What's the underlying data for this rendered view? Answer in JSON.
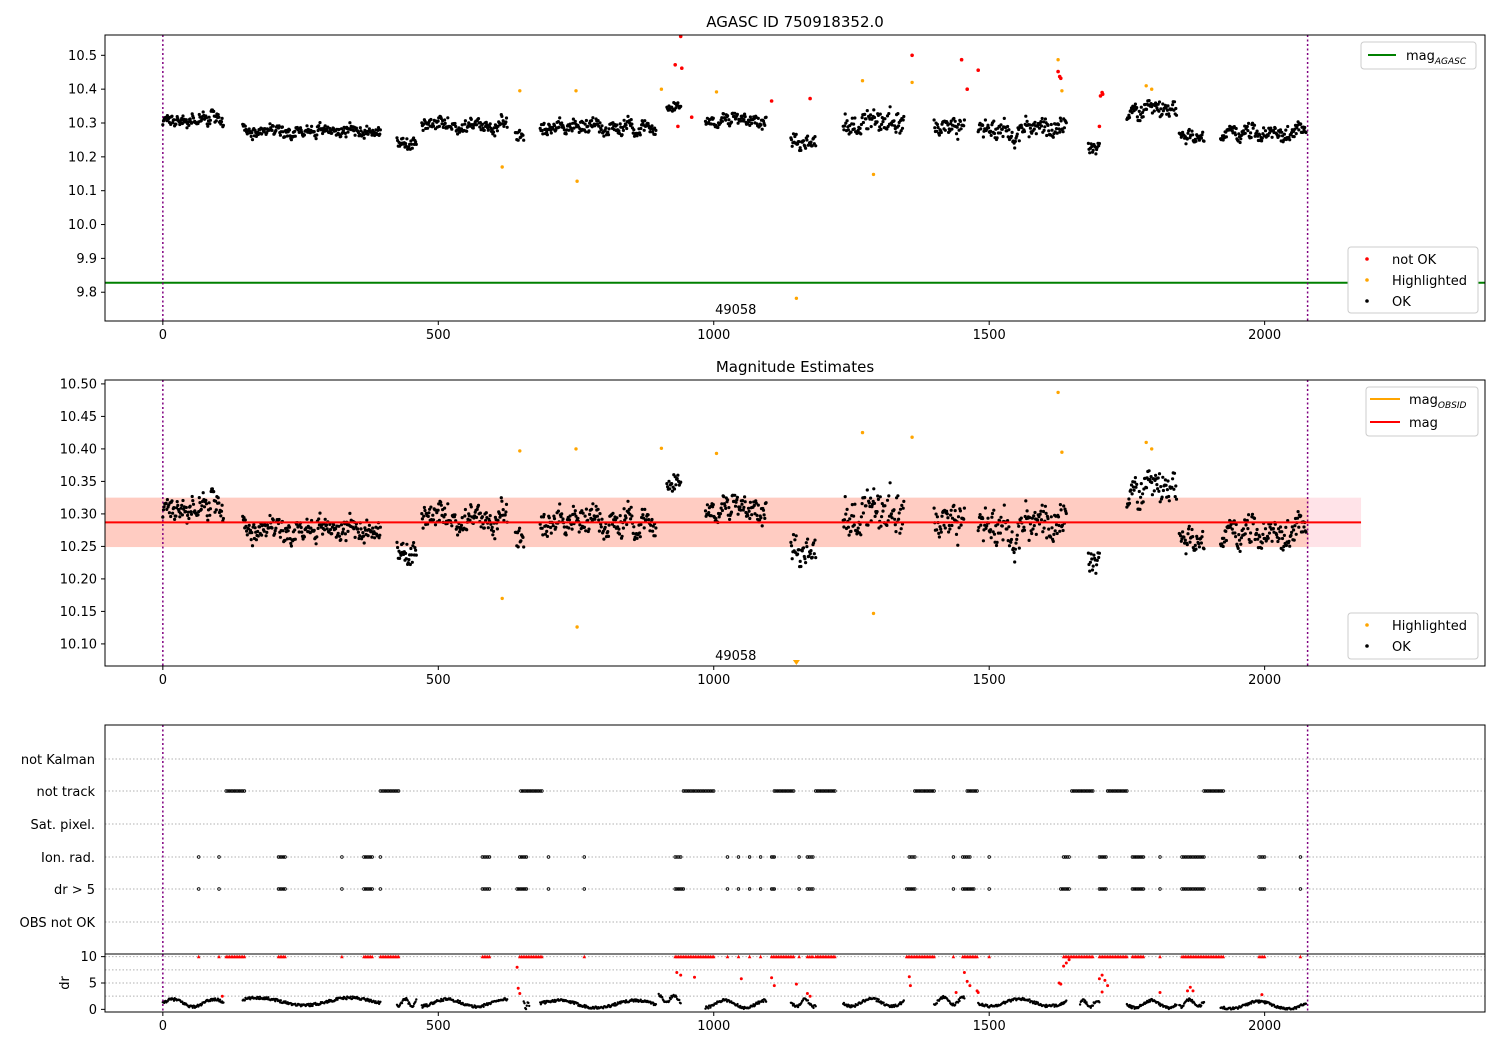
{
  "figure": {
    "colors": {
      "ok": "#000000",
      "not_ok": "#ff0000",
      "highlighted": "#ffa500",
      "agasc_line": "#008000",
      "obsid_line": "#ffa500",
      "mag_line": "#ff0000",
      "band_pink": "#ffc0cb",
      "band_orange": "#ffa07a",
      "vline": "#800080"
    }
  },
  "chart_data": [
    {
      "type": "scatter",
      "title": "AGASC ID 750918352.0",
      "xticks": [
        "0",
        "500",
        "1000",
        "1500",
        "2000"
      ],
      "yticks": [
        "9.8",
        "9.9",
        "10.0",
        "10.1",
        "10.2",
        "10.3",
        "10.4",
        "10.5"
      ],
      "xlim": [
        -105,
        2400
      ],
      "ylim": [
        9.715,
        10.56
      ],
      "annotation": {
        "text": "49058",
        "x": 1040,
        "y": 9.745
      },
      "reference_line": {
        "name": "mag_AGASC",
        "y": 9.828
      },
      "vlines": [
        0,
        2078
      ],
      "legends": {
        "top_right": {
          "label": "mag",
          "sub": "AGASC"
        },
        "bottom_right": [
          "not OK",
          "Highlighted",
          "OK"
        ]
      },
      "series": [
        {
          "name": "OK",
          "segments": [
            [
              0,
              110,
              10.31,
              0.035
            ],
            [
              145,
              395,
              10.28,
              0.028
            ],
            [
              425,
              460,
              10.24,
              0.035
            ],
            [
              470,
              625,
              10.29,
              0.03
            ],
            [
              640,
              655,
              10.26,
              0.03
            ],
            [
              685,
              895,
              10.29,
              0.035
            ],
            [
              915,
              940,
              10.35,
              0.03
            ],
            [
              985,
              1095,
              10.31,
              0.03
            ],
            [
              1140,
              1185,
              10.25,
              0.04
            ],
            [
              1235,
              1345,
              10.3,
              0.06
            ],
            [
              1400,
              1455,
              10.3,
              0.045
            ],
            [
              1480,
              1640,
              10.28,
              0.05
            ],
            [
              1680,
              1700,
              10.23,
              0.04
            ],
            [
              1750,
              1840,
              10.33,
              0.04
            ],
            [
              1845,
              1890,
              10.26,
              0.03
            ],
            [
              1920,
              2075,
              10.27,
              0.04
            ]
          ]
        },
        {
          "name": "Highlighted",
          "points": [
            [
              616,
              10.17
            ],
            [
              648,
              10.395
            ],
            [
              750,
              10.395
            ],
            [
              752,
              10.128
            ],
            [
              905,
              10.4
            ],
            [
              1005,
              10.392
            ],
            [
              1270,
              10.425
            ],
            [
              1290,
              10.148
            ],
            [
              1360,
              10.42
            ],
            [
              1625,
              10.487
            ],
            [
              1632,
              10.395
            ],
            [
              1785,
              10.41
            ],
            [
              1795,
              10.4
            ],
            [
              1150,
              9.782
            ]
          ]
        },
        {
          "name": "not OK",
          "points": [
            [
              930,
              10.472
            ],
            [
              935,
              10.29
            ],
            [
              940,
              10.556
            ],
            [
              942,
              10.462
            ],
            [
              960,
              10.317
            ],
            [
              1105,
              10.365
            ],
            [
              1175,
              10.372
            ],
            [
              1360,
              10.5
            ],
            [
              1450,
              10.487
            ],
            [
              1460,
              10.4
            ],
            [
              1480,
              10.456
            ],
            [
              1625,
              10.452
            ],
            [
              1628,
              10.437
            ],
            [
              1630,
              10.432
            ],
            [
              1700,
              10.29
            ],
            [
              1702,
              10.38
            ],
            [
              1705,
              10.39
            ],
            [
              1706,
              10.385
            ]
          ]
        }
      ]
    },
    {
      "type": "scatter",
      "title": "Magnitude Estimates",
      "xticks": [
        "0",
        "500",
        "1000",
        "1500",
        "2000"
      ],
      "yticks": [
        "10.10",
        "10.15",
        "10.20",
        "10.25",
        "10.30",
        "10.35",
        "10.40",
        "10.45",
        "10.50"
      ],
      "xlim": [
        -105,
        2400
      ],
      "ylim": [
        10.066,
        10.506
      ],
      "annotation": {
        "text": "49058",
        "x": 1040,
        "y": 10.08
      },
      "mag_line": {
        "name": "mag",
        "y": 10.287,
        "x_range": [
          -105,
          2175
        ]
      },
      "bands": [
        {
          "color": "pink",
          "y": [
            10.249,
            10.325
          ],
          "x_range": [
            -105,
            2175
          ]
        },
        {
          "color": "orange",
          "y": [
            10.249,
            10.325
          ],
          "x_range": [
            -105,
            2080
          ]
        }
      ],
      "vlines": [
        0,
        2078
      ],
      "legends": {
        "top_right": [
          {
            "label": "mag",
            "sub": "OBSID"
          },
          {
            "label": "mag"
          }
        ],
        "bottom_right": [
          "Highlighted",
          "OK"
        ]
      },
      "series": [
        {
          "name": "OK",
          "segments": [
            [
              0,
              110,
              10.31,
              0.035
            ],
            [
              145,
              395,
              10.28,
              0.028
            ],
            [
              425,
              460,
              10.24,
              0.035
            ],
            [
              470,
              625,
              10.29,
              0.03
            ],
            [
              640,
              655,
              10.26,
              0.03
            ],
            [
              685,
              895,
              10.29,
              0.035
            ],
            [
              915,
              940,
              10.35,
              0.03
            ],
            [
              985,
              1095,
              10.31,
              0.03
            ],
            [
              1140,
              1185,
              10.25,
              0.04
            ],
            [
              1235,
              1345,
              10.3,
              0.06
            ],
            [
              1400,
              1455,
              10.3,
              0.045
            ],
            [
              1480,
              1640,
              10.28,
              0.05
            ],
            [
              1680,
              1700,
              10.23,
              0.04
            ],
            [
              1750,
              1840,
              10.33,
              0.04
            ],
            [
              1845,
              1890,
              10.26,
              0.03
            ],
            [
              1920,
              2075,
              10.27,
              0.04
            ]
          ]
        },
        {
          "name": "Highlighted",
          "points": [
            [
              616,
              10.17
            ],
            [
              648,
              10.397
            ],
            [
              750,
              10.4
            ],
            [
              752,
              10.126
            ],
            [
              905,
              10.401
            ],
            [
              1005,
              10.393
            ],
            [
              1270,
              10.425
            ],
            [
              1290,
              10.147
            ],
            [
              1360,
              10.418
            ],
            [
              1625,
              10.487
            ],
            [
              1632,
              10.395
            ],
            [
              1785,
              10.41
            ],
            [
              1795,
              10.4
            ]
          ],
          "below_range_marker_x": 1150
        }
      ]
    },
    {
      "type": "scatter",
      "title": "",
      "xticks": [
        "0",
        "500",
        "1000",
        "1500",
        "2000"
      ],
      "xlim": [
        -105,
        2400
      ],
      "vlines": [
        0,
        2078
      ],
      "flag_rows": [
        "not Kalman",
        "not track",
        "Sat. pixel.",
        "Ion. rad.",
        "dr > 5",
        "OBS not OK"
      ],
      "flags": {
        "not track": [
          [
            115,
            148
          ],
          [
            395,
            428
          ],
          [
            650,
            688
          ],
          [
            945,
            1000
          ],
          [
            1110,
            1145
          ],
          [
            1185,
            1220
          ],
          [
            1365,
            1400
          ],
          [
            1460,
            1478
          ],
          [
            1650,
            1688
          ],
          [
            1715,
            1750
          ],
          [
            1890,
            1925
          ]
        ],
        "Ion. rad.": [
          [
            65,
            65
          ],
          [
            102,
            102
          ],
          [
            210,
            222
          ],
          [
            325,
            325
          ],
          [
            365,
            380
          ],
          [
            395,
            395
          ],
          [
            580,
            593
          ],
          [
            648,
            660
          ],
          [
            700,
            700
          ],
          [
            765,
            765
          ],
          [
            930,
            940
          ],
          [
            1025,
            1025
          ],
          [
            1045,
            1045
          ],
          [
            1065,
            1065
          ],
          [
            1085,
            1085
          ],
          [
            1105,
            1110
          ],
          [
            1155,
            1155
          ],
          [
            1170,
            1180
          ],
          [
            1355,
            1365
          ],
          [
            1435,
            1435
          ],
          [
            1452,
            1465
          ],
          [
            1500,
            1500
          ],
          [
            1635,
            1645
          ],
          [
            1700,
            1712
          ],
          [
            1760,
            1780
          ],
          [
            1810,
            1810
          ],
          [
            1850,
            1890
          ],
          [
            1990,
            2000
          ],
          [
            2065,
            2065
          ]
        ],
        "dr > 5": [
          [
            65,
            65
          ],
          [
            102,
            102
          ],
          [
            210,
            222
          ],
          [
            325,
            325
          ],
          [
            365,
            380
          ],
          [
            395,
            395
          ],
          [
            580,
            593
          ],
          [
            643,
            660
          ],
          [
            700,
            700
          ],
          [
            765,
            765
          ],
          [
            930,
            945
          ],
          [
            1025,
            1025
          ],
          [
            1045,
            1045
          ],
          [
            1065,
            1065
          ],
          [
            1085,
            1085
          ],
          [
            1105,
            1110
          ],
          [
            1155,
            1155
          ],
          [
            1170,
            1180
          ],
          [
            1350,
            1365
          ],
          [
            1435,
            1435
          ],
          [
            1452,
            1472
          ],
          [
            1500,
            1500
          ],
          [
            1630,
            1645
          ],
          [
            1700,
            1712
          ],
          [
            1760,
            1780
          ],
          [
            1810,
            1810
          ],
          [
            1850,
            1890
          ],
          [
            1990,
            2000
          ],
          [
            2065,
            2065
          ]
        ]
      },
      "dr": {
        "ylabel": "dr",
        "yticks": [
          "0",
          "5",
          "10"
        ],
        "ylim": [
          -0.5,
          10.5
        ],
        "clip_points_x": [
          [
            65,
            65
          ],
          [
            102,
            102
          ],
          [
            115,
            148
          ],
          [
            210,
            222
          ],
          [
            325,
            325
          ],
          [
            365,
            380
          ],
          [
            395,
            428
          ],
          [
            580,
            593
          ],
          [
            648,
            688
          ],
          [
            765,
            765
          ],
          [
            930,
            1000
          ],
          [
            1025,
            1025
          ],
          [
            1045,
            1045
          ],
          [
            1065,
            1065
          ],
          [
            1085,
            1085
          ],
          [
            1105,
            1145
          ],
          [
            1155,
            1155
          ],
          [
            1170,
            1180
          ],
          [
            1185,
            1220
          ],
          [
            1350,
            1400
          ],
          [
            1435,
            1435
          ],
          [
            1452,
            1478
          ],
          [
            1500,
            1500
          ],
          [
            1635,
            1688
          ],
          [
            1700,
            1750
          ],
          [
            1760,
            1780
          ],
          [
            1810,
            1810
          ],
          [
            1850,
            1925
          ],
          [
            1990,
            2000
          ],
          [
            2065,
            2065
          ]
        ],
        "red_points": [
          [
            108,
            2.5
          ],
          [
            643,
            8
          ],
          [
            645,
            4
          ],
          [
            648,
            3
          ],
          [
            933,
            7
          ],
          [
            940,
            6.5
          ],
          [
            965,
            6.1
          ],
          [
            1050,
            5.8
          ],
          [
            1105,
            6
          ],
          [
            1110,
            4.5
          ],
          [
            1150,
            4.8
          ],
          [
            1170,
            3
          ],
          [
            1175,
            2.5
          ],
          [
            1355,
            6.2
          ],
          [
            1357,
            4.5
          ],
          [
            1440,
            3.2
          ],
          [
            1455,
            7
          ],
          [
            1460,
            5.3
          ],
          [
            1465,
            4.5
          ],
          [
            1478,
            3.5
          ],
          [
            1480,
            3.2
          ],
          [
            1635,
            8.2
          ],
          [
            1640,
            8.8
          ],
          [
            1645,
            9.4
          ],
          [
            1627,
            5
          ],
          [
            1630,
            4.8
          ],
          [
            1700,
            5.8
          ],
          [
            1705,
            6.5
          ],
          [
            1710,
            5.5
          ],
          [
            1715,
            4.5
          ],
          [
            1705,
            3.3
          ],
          [
            1810,
            3.2
          ],
          [
            1860,
            3.5
          ],
          [
            1865,
            4.2
          ],
          [
            1870,
            3.5
          ],
          [
            1995,
            2.8
          ]
        ],
        "ok_segments": [
          [
            0,
            110,
            1.2
          ],
          [
            145,
            395,
            1.5
          ],
          [
            425,
            460,
            1.3
          ],
          [
            470,
            625,
            1.2
          ],
          [
            655,
            665,
            0.8
          ],
          [
            685,
            895,
            1
          ],
          [
            900,
            940,
            2
          ],
          [
            985,
            1095,
            1
          ],
          [
            1140,
            1185,
            1.2
          ],
          [
            1235,
            1345,
            1.3
          ],
          [
            1400,
            1455,
            1.6
          ],
          [
            1480,
            1640,
            1.3
          ],
          [
            1665,
            1700,
            1
          ],
          [
            1750,
            1840,
            1
          ],
          [
            1845,
            1890,
            1.2
          ],
          [
            1920,
            2075,
            0.8
          ]
        ]
      }
    }
  ]
}
